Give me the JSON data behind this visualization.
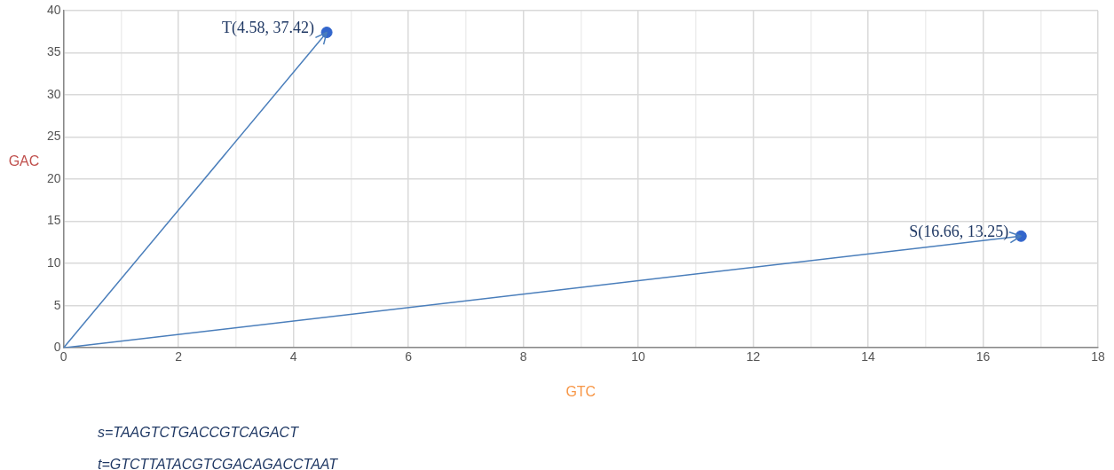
{
  "chart_data": {
    "type": "scatter",
    "xlabel": "GTC",
    "ylabel": "GAC",
    "xlim": [
      0,
      18
    ],
    "ylim": [
      0,
      40
    ],
    "xticks": [
      0,
      {
        "value": 1,
        "label": null
      },
      2,
      {
        "value": 3,
        "label": null
      },
      4,
      {
        "value": 5,
        "label": null
      },
      6,
      {
        "value": 7,
        "label": null
      },
      8,
      {
        "value": 9,
        "label": null
      },
      10,
      {
        "value": 11,
        "label": null
      },
      12,
      {
        "value": 13,
        "label": null
      },
      14,
      {
        "value": 15,
        "label": null
      },
      16,
      {
        "value": 17,
        "label": null
      },
      18
    ],
    "yticks": [
      0,
      5,
      10,
      15,
      20,
      25,
      30,
      35,
      40
    ],
    "grid": true,
    "legend": false,
    "marker": "circle",
    "series": [
      {
        "type": "line",
        "marker": "none",
        "color": "#4a7ebb",
        "x": [
          0,
          4.58
        ],
        "values": [
          0,
          37.42
        ]
      },
      {
        "type": "line",
        "marker": "none",
        "color": "#4a7ebb",
        "x": [
          0,
          16.66
        ],
        "values": [
          0,
          13.25
        ]
      },
      {
        "color": "#3366cc",
        "x": [
          4.58,
          16.66
        ],
        "values": [
          37.42,
          13.25
        ]
      }
    ],
    "annotations": [
      {
        "text": "T(4.58, 37.42)",
        "x": 4.58,
        "y": 37.42
      },
      {
        "text": "S(16.66, 13.25)",
        "x": 16.66,
        "y": 13.25
      },
      "s=TAAGTCTGACCGTCAGACT",
      "t=GTCTTATACGTCGACAGACCTAAT"
    ]
  }
}
